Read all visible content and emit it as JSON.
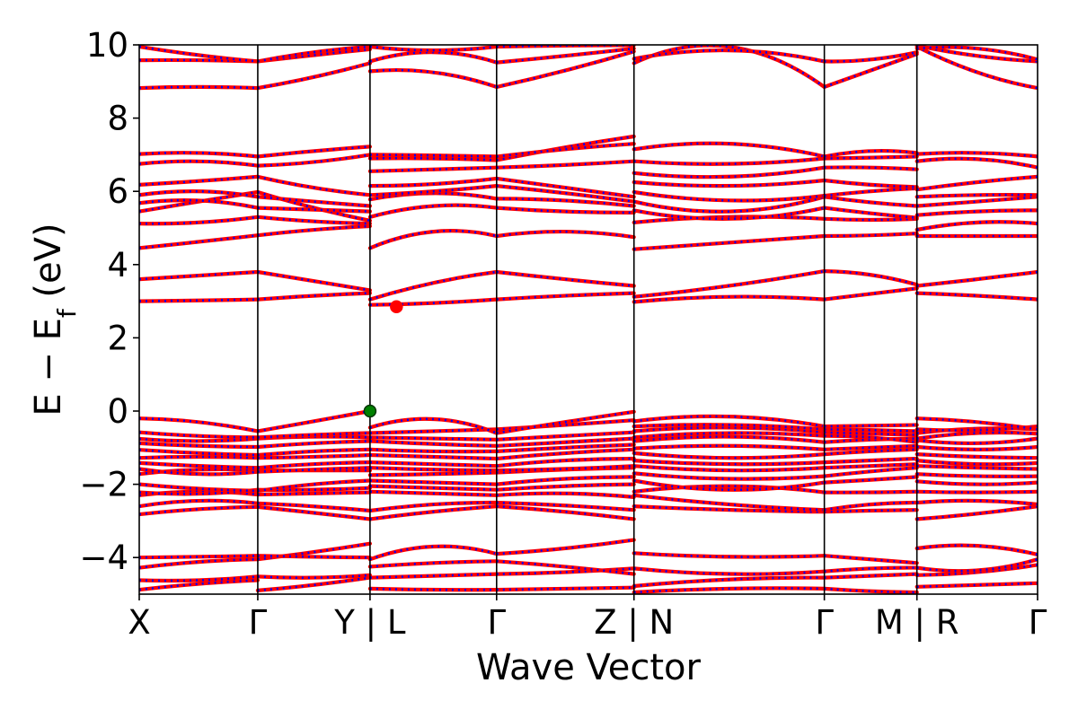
{
  "chart_data": {
    "type": "line",
    "title": "",
    "xlabel": "Wave Vector",
    "ylabel": "E − E",
    "ylabel_sub": "f",
    "ylabel_unit": " (eV)",
    "ylim": [
      -5,
      10
    ],
    "xlim": [
      0,
      7.579
    ],
    "yticks": [
      -4,
      -2,
      0,
      2,
      4,
      6,
      8,
      10
    ],
    "ytick_labels": [
      "−4",
      "−2",
      "0",
      "2",
      "4",
      "6",
      "8",
      "10"
    ],
    "kpoints": [
      {
        "label": "X",
        "x": 0
      },
      {
        "label": "Γ",
        "x": 1.0
      },
      {
        "label": "Y | L",
        "x": 1.947
      },
      {
        "label": "Γ",
        "x": 3.015
      },
      {
        "label": "Z | N",
        "x": 4.174
      },
      {
        "label": "Γ",
        "x": 5.78
      },
      {
        "label": "M | R",
        "x": 6.561
      },
      {
        "label": "Γ",
        "x": 7.579
      }
    ],
    "segments": [
      {
        "x0": 0,
        "x1": 1.0,
        "bands": [
          [
            -4.88,
            -4.72,
            -4.62
          ],
          [
            -4.62,
            -4.62,
            -4.52
          ],
          [
            -4.28,
            -4.12,
            -4.05
          ],
          [
            -4.0,
            -3.98,
            -3.95
          ],
          [
            -2.82,
            -2.68,
            -2.62
          ],
          [
            -2.6,
            -2.45,
            -2.52
          ],
          [
            -2.3,
            -2.2,
            -2.28
          ],
          [
            -2.22,
            -2.26,
            -2.15
          ],
          [
            -2.0,
            -2.12,
            -2.18
          ],
          [
            -1.72,
            -1.6,
            -1.62
          ],
          [
            -1.58,
            -1.72,
            -1.66
          ],
          [
            -1.42,
            -1.5,
            -1.55
          ],
          [
            -1.28,
            -1.25,
            -1.28
          ],
          [
            -1.06,
            -1.15,
            -1.2
          ],
          [
            -0.88,
            -0.95,
            -0.98
          ],
          [
            -0.76,
            -0.82,
            -0.75
          ],
          [
            -0.58,
            -0.68,
            -0.72
          ],
          [
            -0.2,
            -0.3,
            -0.55
          ],
          [
            3.0,
            3.02,
            3.05
          ],
          [
            3.6,
            3.7,
            3.8
          ],
          [
            4.45,
            4.62,
            4.8
          ],
          [
            5.12,
            5.15,
            5.3
          ],
          [
            5.45,
            5.72,
            5.98
          ],
          [
            5.68,
            5.75,
            5.55
          ],
          [
            5.9,
            6.0,
            5.85
          ],
          [
            6.18,
            6.28,
            6.4
          ],
          [
            6.75,
            6.82,
            6.7
          ],
          [
            7.02,
            7.05,
            6.95
          ],
          [
            8.82,
            8.85,
            8.82
          ],
          [
            9.58,
            9.58,
            9.55
          ],
          [
            9.95,
            9.72,
            9.55
          ]
        ]
      },
      {
        "x0": 1.0,
        "x1": 1.947,
        "bands": [
          [
            -4.9,
            -4.75,
            -4.55
          ],
          [
            -4.52,
            -4.55,
            -4.48
          ],
          [
            -4.05,
            -3.85,
            -3.62
          ],
          [
            -3.95,
            -3.98,
            -4.0
          ],
          [
            -2.62,
            -2.78,
            -2.95
          ],
          [
            -2.52,
            -2.6,
            -2.72
          ],
          [
            -2.28,
            -2.25,
            -2.22
          ],
          [
            -2.15,
            -2.15,
            -2.1
          ],
          [
            -2.18,
            -2.0,
            -1.9
          ],
          [
            -1.62,
            -1.62,
            -1.62
          ],
          [
            -1.66,
            -1.6,
            -1.55
          ],
          [
            -1.55,
            -1.45,
            -1.4
          ],
          [
            -1.28,
            -1.25,
            -1.2
          ],
          [
            -1.2,
            -1.1,
            -1.05
          ],
          [
            -0.98,
            -0.88,
            -0.82
          ],
          [
            -0.75,
            -0.7,
            -0.72
          ],
          [
            -0.72,
            -0.65,
            -0.6
          ],
          [
            -0.55,
            -0.28,
            0.0
          ],
          [
            3.05,
            3.15,
            3.22
          ],
          [
            3.8,
            3.55,
            3.3
          ],
          [
            4.8,
            4.95,
            5.05
          ],
          [
            5.3,
            5.18,
            5.12
          ],
          [
            5.98,
            5.55,
            5.2
          ],
          [
            5.55,
            5.5,
            5.45
          ],
          [
            5.85,
            5.72,
            5.6
          ],
          [
            6.4,
            6.1,
            5.9
          ],
          [
            6.7,
            6.8,
            7.0
          ],
          [
            6.95,
            7.1,
            7.22
          ],
          [
            8.82,
            9.12,
            9.5
          ],
          [
            9.55,
            9.72,
            9.88
          ],
          [
            9.55,
            9.8,
            9.95
          ]
        ]
      },
      {
        "x0": 1.947,
        "x1": 3.015,
        "bands": [
          [
            -4.85,
            -4.88,
            -4.88
          ],
          [
            -4.55,
            -4.5,
            -4.45
          ],
          [
            -4.25,
            -4.15,
            -4.1
          ],
          [
            -4.05,
            -3.7,
            -3.9
          ],
          [
            -2.95,
            -2.75,
            -2.6
          ],
          [
            -2.72,
            -2.55,
            -2.5
          ],
          [
            -2.2,
            -2.25,
            -2.3
          ],
          [
            -2.05,
            -2.1,
            -2.15
          ],
          [
            -1.9,
            -1.95,
            -2.0
          ],
          [
            -1.75,
            -1.72,
            -1.68
          ],
          [
            -1.55,
            -1.6,
            -1.62
          ],
          [
            -1.4,
            -1.45,
            -1.5
          ],
          [
            -1.2,
            -1.25,
            -1.3
          ],
          [
            -1.05,
            -1.1,
            -1.1
          ],
          [
            -0.82,
            -0.9,
            -0.95
          ],
          [
            -0.72,
            -0.75,
            -0.78
          ],
          [
            -0.6,
            -0.55,
            -0.5
          ],
          [
            -0.45,
            -0.22,
            -0.6
          ],
          [
            2.9,
            2.95,
            3.05
          ],
          [
            3.05,
            3.5,
            3.8
          ],
          [
            4.45,
            4.9,
            4.78
          ],
          [
            5.3,
            5.6,
            5.55
          ],
          [
            5.78,
            5.95,
            5.8
          ],
          [
            5.9,
            6.0,
            6.15
          ],
          [
            6.15,
            6.2,
            6.35
          ],
          [
            6.55,
            6.6,
            6.65
          ],
          [
            6.9,
            6.9,
            6.85
          ],
          [
            7.0,
            6.98,
            6.95
          ],
          [
            9.28,
            9.25,
            8.85
          ],
          [
            9.55,
            9.8,
            9.52
          ],
          [
            9.95,
            9.85,
            9.95
          ]
        ]
      },
      {
        "x0": 3.015,
        "x1": 4.174,
        "bands": [
          [
            -4.88,
            -4.85,
            -4.82
          ],
          [
            -4.45,
            -4.4,
            -4.3
          ],
          [
            -4.1,
            -4.25,
            -4.45
          ],
          [
            -3.9,
            -3.75,
            -3.52
          ],
          [
            -2.6,
            -2.75,
            -2.95
          ],
          [
            -2.5,
            -2.58,
            -2.7
          ],
          [
            -2.3,
            -2.25,
            -2.35
          ],
          [
            -2.15,
            -2.05,
            -2.0
          ],
          [
            -2.0,
            -1.85,
            -1.8
          ],
          [
            -1.68,
            -1.6,
            -1.55
          ],
          [
            -1.62,
            -1.58,
            -1.5
          ],
          [
            -1.5,
            -1.35,
            -1.3
          ],
          [
            -1.3,
            -1.15,
            -1.05
          ],
          [
            -1.1,
            -1.0,
            -0.92
          ],
          [
            -0.95,
            -0.85,
            -0.75
          ],
          [
            -0.78,
            -0.68,
            -0.58
          ],
          [
            -0.5,
            -0.38,
            -0.25
          ],
          [
            -0.6,
            -0.3,
            -0.02
          ],
          [
            3.05,
            3.15,
            3.22
          ],
          [
            3.8,
            3.6,
            3.42
          ],
          [
            4.78,
            4.9,
            4.75
          ],
          [
            5.55,
            5.45,
            5.42
          ],
          [
            5.8,
            5.75,
            5.6
          ],
          [
            6.15,
            5.95,
            5.72
          ],
          [
            6.35,
            6.1,
            5.85
          ],
          [
            6.65,
            6.72,
            6.82
          ],
          [
            6.85,
            7.2,
            7.5
          ],
          [
            6.95,
            7.15,
            7.3
          ],
          [
            8.85,
            9.3,
            9.82
          ],
          [
            9.52,
            9.7,
            9.9
          ],
          [
            9.95,
            9.98,
            9.99
          ]
        ]
      },
      {
        "x0": 4.174,
        "x1": 5.78,
        "bands": [
          [
            -4.95,
            -4.85,
            -4.85
          ],
          [
            -4.78,
            -4.6,
            -4.55
          ],
          [
            -4.3,
            -4.45,
            -4.38
          ],
          [
            -3.88,
            -3.98,
            -3.95
          ],
          [
            -2.6,
            -2.7,
            -2.75
          ],
          [
            -2.3,
            -2.55,
            -2.7
          ],
          [
            -2.2,
            -2.05,
            -2.22
          ],
          [
            -1.9,
            -2.15,
            -1.95
          ],
          [
            -1.7,
            -1.85,
            -1.78
          ],
          [
            -1.5,
            -1.62,
            -1.55
          ],
          [
            -1.35,
            -1.45,
            -1.4
          ],
          [
            -1.15,
            -1.28,
            -1.18
          ],
          [
            -1.02,
            -0.95,
            -1.05
          ],
          [
            -0.82,
            -0.7,
            -0.85
          ],
          [
            -0.72,
            -0.6,
            -0.68
          ],
          [
            -0.55,
            -0.45,
            -0.58
          ],
          [
            -0.42,
            -0.38,
            -0.5
          ],
          [
            -0.28,
            -0.15,
            -0.42
          ],
          [
            2.98,
            3.12,
            3.05
          ],
          [
            3.12,
            3.42,
            3.82
          ],
          [
            4.42,
            4.6,
            4.78
          ],
          [
            5.15,
            5.3,
            5.25
          ],
          [
            5.48,
            5.25,
            5.55
          ],
          [
            5.72,
            5.45,
            5.85
          ],
          [
            5.98,
            5.75,
            5.88
          ],
          [
            6.25,
            6.15,
            6.3
          ],
          [
            6.5,
            6.4,
            6.65
          ],
          [
            6.82,
            6.75,
            6.9
          ],
          [
            7.15,
            7.3,
            6.95
          ],
          [
            9.5,
            9.95,
            8.85
          ],
          [
            9.62,
            9.85,
            9.55
          ]
        ]
      },
      {
        "x0": 5.78,
        "x1": 6.561,
        "bands": [
          [
            -4.85,
            -4.92,
            -4.95
          ],
          [
            -4.55,
            -4.5,
            -4.45
          ],
          [
            -4.38,
            -4.3,
            -4.28
          ],
          [
            -3.95,
            -4.05,
            -4.15
          ],
          [
            -2.75,
            -2.72,
            -2.7
          ],
          [
            -2.7,
            -2.55,
            -2.5
          ],
          [
            -2.22,
            -2.22,
            -2.2
          ],
          [
            -1.95,
            -1.88,
            -1.8
          ],
          [
            -1.78,
            -1.65,
            -1.55
          ],
          [
            -1.55,
            -1.5,
            -1.45
          ],
          [
            -1.4,
            -1.35,
            -1.3
          ],
          [
            -1.18,
            -1.1,
            -1.05
          ],
          [
            -1.05,
            -1.0,
            -0.95
          ],
          [
            -0.85,
            -0.78,
            -0.75
          ],
          [
            -0.68,
            -0.72,
            -0.85
          ],
          [
            -0.58,
            -0.62,
            -0.65
          ],
          [
            -0.5,
            -0.52,
            -0.55
          ],
          [
            -0.42,
            -0.4,
            -0.38
          ],
          [
            3.05,
            3.2,
            3.35
          ],
          [
            3.82,
            3.72,
            3.45
          ],
          [
            4.78,
            4.8,
            4.85
          ],
          [
            5.25,
            5.22,
            5.25
          ],
          [
            5.55,
            5.4,
            5.28
          ],
          [
            5.85,
            5.7,
            5.6
          ],
          [
            5.88,
            6.0,
            6.08
          ],
          [
            6.3,
            6.18,
            6.12
          ],
          [
            6.65,
            6.65,
            6.6
          ],
          [
            6.9,
            6.92,
            6.95
          ],
          [
            6.95,
            7.1,
            7.05
          ],
          [
            8.85,
            9.3,
            9.75
          ],
          [
            9.55,
            9.6,
            9.8
          ]
        ]
      },
      {
        "x0": 6.561,
        "x1": 7.579,
        "bands": [
          [
            -4.8,
            -4.75,
            -4.7
          ],
          [
            -4.48,
            -4.4,
            -4.2
          ],
          [
            -4.28,
            -4.35,
            -4.05
          ],
          [
            -3.75,
            -3.68,
            -3.92
          ],
          [
            -2.95,
            -2.8,
            -2.6
          ],
          [
            -2.5,
            -2.45,
            -2.55
          ],
          [
            -2.2,
            -2.22,
            -2.2
          ],
          [
            -1.92,
            -2.0,
            -1.95
          ],
          [
            -1.72,
            -1.78,
            -1.78
          ],
          [
            -1.5,
            -1.55,
            -1.58
          ],
          [
            -1.35,
            -1.45,
            -1.42
          ],
          [
            -1.18,
            -1.25,
            -1.28
          ],
          [
            -0.98,
            -1.05,
            -0.98
          ],
          [
            -0.8,
            -0.88,
            -0.75
          ],
          [
            -0.75,
            -0.6,
            -0.62
          ],
          [
            -0.6,
            -0.48,
            -0.5
          ],
          [
            -0.5,
            -0.52,
            -0.42
          ],
          [
            -0.2,
            -0.3,
            -0.5
          ],
          [
            3.22,
            3.15,
            3.05
          ],
          [
            3.42,
            3.6,
            3.8
          ],
          [
            4.78,
            4.78,
            4.78
          ],
          [
            4.95,
            5.15,
            5.12
          ],
          [
            5.35,
            5.45,
            5.48
          ],
          [
            5.6,
            5.72,
            5.85
          ],
          [
            5.85,
            5.9,
            5.9
          ],
          [
            6.05,
            6.25,
            6.4
          ],
          [
            6.82,
            6.88,
            6.65
          ],
          [
            7.02,
            7.05,
            6.95
          ],
          [
            9.95,
            9.25,
            8.82
          ],
          [
            9.98,
            9.7,
            9.55
          ],
          [
            9.9,
            9.9,
            9.6
          ]
        ]
      }
    ],
    "series": [
      {
        "name": "",
        "color": "#ff0000",
        "style": "solid"
      },
      {
        "name": "",
        "color": "#0000ff",
        "style": "dotted"
      }
    ],
    "markers": [
      {
        "x": 1.947,
        "y": 0.0,
        "color": "#008000",
        "kind": "vbm"
      },
      {
        "x": 2.17,
        "y": 2.85,
        "color": "#ff0000",
        "kind": "cbm"
      }
    ],
    "grid": false,
    "legend": "none"
  }
}
